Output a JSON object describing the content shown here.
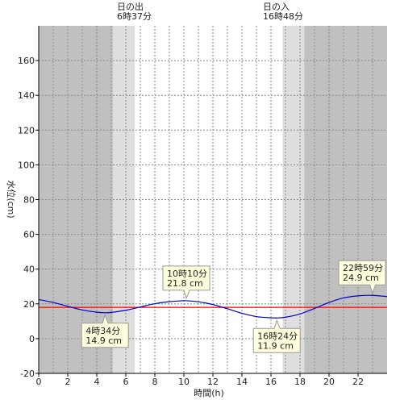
{
  "chart_data": {
    "type": "line",
    "xlabel": "時間(h)",
    "ylabel": "水位(cm)",
    "xlim": [
      0,
      24
    ],
    "ylim": [
      -20,
      180
    ],
    "x_ticks": [
      0,
      2,
      4,
      6,
      8,
      10,
      12,
      14,
      16,
      18,
      20,
      22
    ],
    "y_ticks": [
      -20,
      0,
      20,
      40,
      60,
      80,
      100,
      120,
      140,
      160
    ],
    "grid": true,
    "reference_line": {
      "y": 18,
      "color": "#ff0000"
    },
    "series": [
      {
        "color": "#0000cc",
        "x": [
          0,
          1,
          2,
          3,
          4,
          4.567,
          5,
          6,
          7,
          8,
          9,
          10,
          10.167,
          11,
          12,
          13,
          14,
          15,
          16,
          16.4,
          17,
          18,
          19,
          20,
          21,
          22,
          22.983,
          24
        ],
        "y": [
          22.5,
          20.8,
          18.6,
          16.5,
          15.2,
          14.9,
          15.1,
          16.3,
          18.2,
          20.1,
          21.3,
          21.8,
          21.8,
          21.2,
          19.6,
          17.2,
          14.6,
          12.7,
          12.0,
          11.9,
          12.3,
          14.2,
          17.4,
          20.8,
          23.4,
          24.6,
          24.9,
          24.2
        ]
      }
    ],
    "sun": {
      "sunrise": {
        "label": "日の出",
        "time": "6時37分",
        "x": 6.617
      },
      "sunset": {
        "label": "日の入",
        "time": "16時48分",
        "x": 16.8
      },
      "twilight_morning_start": 5.1,
      "twilight_evening_end": 18.3,
      "night_color": "#c0c0c0",
      "twilight_color": "#dedede",
      "day_color": "#ffffff"
    },
    "annotations": [
      {
        "time": "4時34分",
        "level": "14.9 cm",
        "x": 4.567,
        "y": 14.9,
        "placement": "below"
      },
      {
        "time": "10時10分",
        "level": "21.8 cm",
        "x": 10.167,
        "y": 21.8,
        "placement": "above"
      },
      {
        "time": "16時24分",
        "level": "11.9 cm",
        "x": 16.4,
        "y": 11.9,
        "placement": "below"
      },
      {
        "time": "22時59分",
        "level": "24.9 cm",
        "x": 22.983,
        "y": 24.9,
        "placement": "above"
      }
    ]
  }
}
